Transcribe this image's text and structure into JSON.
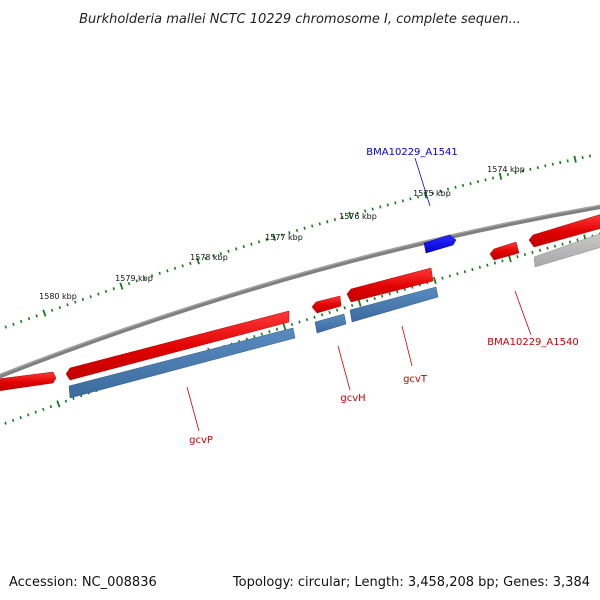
{
  "title": "Burkholderia mallei NCTC 10229 chromosome I, complete sequen...",
  "footer": {
    "accession": "Accession: NC_008836",
    "summary": "Topology: circular; Length: 3,458,208 bp; Genes: 3,384"
  },
  "ruler": {
    "color": "#1a7a1a",
    "ticks": [
      {
        "label": "1574 kbp"
      },
      {
        "label": "1575 kbp"
      },
      {
        "label": "1576 kbp"
      },
      {
        "label": "1577 kbp"
      },
      {
        "label": "1578 kbp"
      },
      {
        "label": "1579 kbp"
      },
      {
        "label": "1580 kbp"
      }
    ]
  },
  "genes": [
    {
      "label": "BMA10229_A1541",
      "color": "#0000cc"
    },
    {
      "label": "BMA10229_A1540",
      "color": "#cc0000"
    },
    {
      "label": "gcvT",
      "color": "#cc0000"
    },
    {
      "label": "gcvH",
      "color": "#cc0000"
    },
    {
      "label": "gcvP",
      "color": "#cc0000"
    }
  ],
  "colors": {
    "backbone": "#808080",
    "forward_gene": "#e00000",
    "reverse_gene": "#0000ee",
    "cds": "#4f7fb0",
    "other_feature": "#b0b0b0"
  }
}
